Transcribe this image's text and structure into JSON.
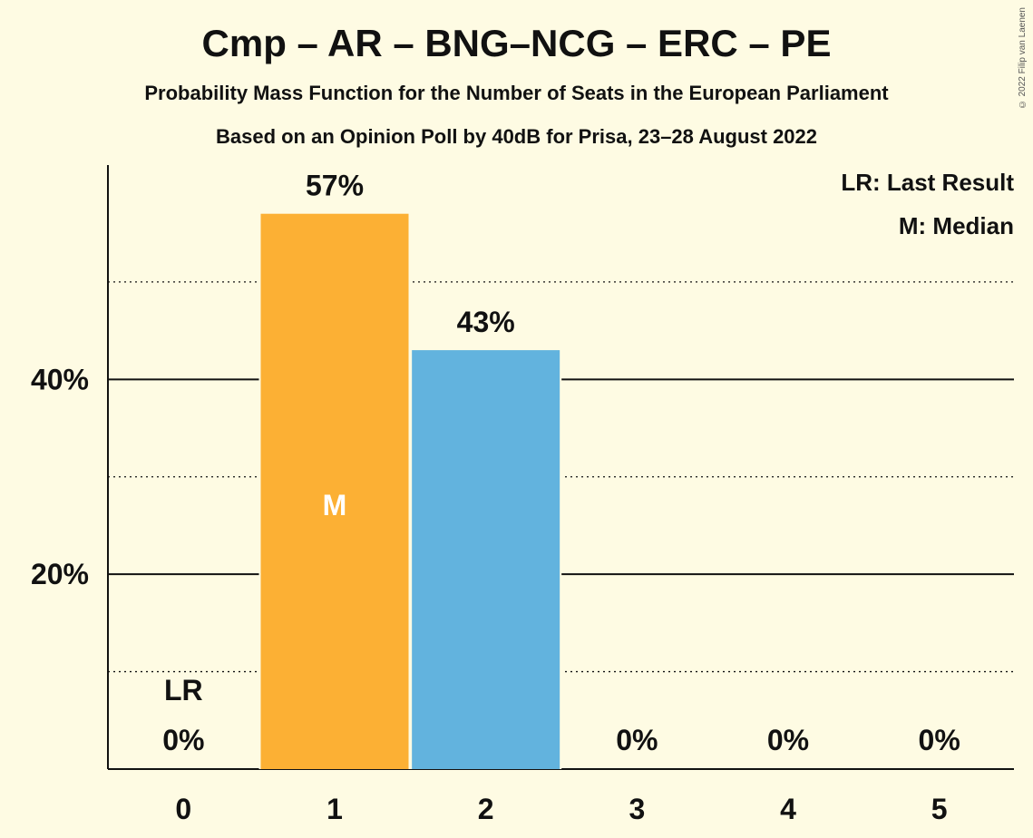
{
  "title": "Cmp – AR – BNG–NCG – ERC – PE",
  "subtitle": "Probability Mass Function for the Number of Seats in the European Parliament",
  "subtitle2": "Based on an Opinion Poll by 40dB for Prisa, 23–28 August 2022",
  "copyright": "© 2022 Filip van Laenen",
  "legend": {
    "last_result": "LR: Last Result",
    "median": "M: Median"
  },
  "colors": {
    "background": "#fefbe3",
    "median_bar": "#fcb034",
    "bar": "#62b3de",
    "text": "#111111"
  },
  "chart_data": {
    "type": "bar",
    "categories": [
      "0",
      "1",
      "2",
      "3",
      "4",
      "5"
    ],
    "values": [
      0,
      57,
      43,
      0,
      0,
      0
    ],
    "value_labels": [
      "0%",
      "57%",
      "43%",
      "0%",
      "0%",
      "0%"
    ],
    "ylim": [
      0,
      62
    ],
    "y_ticks": [
      {
        "value": 10,
        "label": "",
        "style": "dotted"
      },
      {
        "value": 20,
        "label": "20%",
        "style": "solid"
      },
      {
        "value": 30,
        "label": "",
        "style": "dotted"
      },
      {
        "value": 40,
        "label": "40%",
        "style": "solid"
      },
      {
        "value": 50,
        "label": "",
        "style": "dotted"
      }
    ],
    "median_category": "1",
    "median_marker": "M",
    "last_result_category": "0",
    "last_result_marker": "LR",
    "grid": true,
    "legend_position": "top-right"
  }
}
